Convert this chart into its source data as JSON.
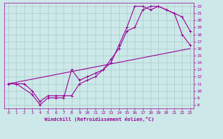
{
  "xlabel": "Windchill (Refroidissement éolien,°C)",
  "bg_color": "#cce8e8",
  "grid_color": "#aacccc",
  "line_color": "#990099",
  "xlim": [
    -0.5,
    23.5
  ],
  "ylim": [
    7.5,
    22.5
  ],
  "xticks": [
    0,
    1,
    2,
    3,
    4,
    5,
    6,
    7,
    8,
    9,
    10,
    11,
    12,
    13,
    14,
    15,
    16,
    17,
    18,
    19,
    20,
    21,
    22,
    23
  ],
  "yticks": [
    8,
    9,
    10,
    11,
    12,
    13,
    14,
    15,
    16,
    17,
    18,
    19,
    20,
    21,
    22
  ],
  "line1_x": [
    0,
    1,
    2,
    3,
    4,
    5,
    6,
    7,
    8,
    9,
    10,
    11,
    12,
    13,
    14,
    15,
    16,
    17,
    18,
    19,
    20,
    21,
    22,
    23
  ],
  "line1_y": [
    11,
    11,
    11,
    10,
    8.5,
    9.3,
    9.3,
    9.3,
    9.3,
    11,
    11.5,
    12,
    13,
    14.5,
    16,
    18.5,
    19,
    21.5,
    22,
    22,
    21.5,
    21,
    20.5,
    18.5
  ],
  "line2_x": [
    0,
    1,
    3,
    4,
    5,
    6,
    7,
    8,
    9,
    10,
    11,
    12,
    13,
    14,
    15,
    16,
    17,
    18,
    19,
    20,
    21,
    22,
    23
  ],
  "line2_y": [
    11,
    11,
    9.5,
    8,
    9,
    9,
    9,
    13,
    11.5,
    12,
    12.5,
    13,
    14,
    16.5,
    19,
    22,
    22,
    21.5,
    22,
    21.5,
    21,
    18,
    16.5
  ],
  "line3_x": [
    0,
    23
  ],
  "line3_y": [
    11,
    16
  ],
  "marker": "+",
  "markersize": 3,
  "linewidth": 0.8
}
